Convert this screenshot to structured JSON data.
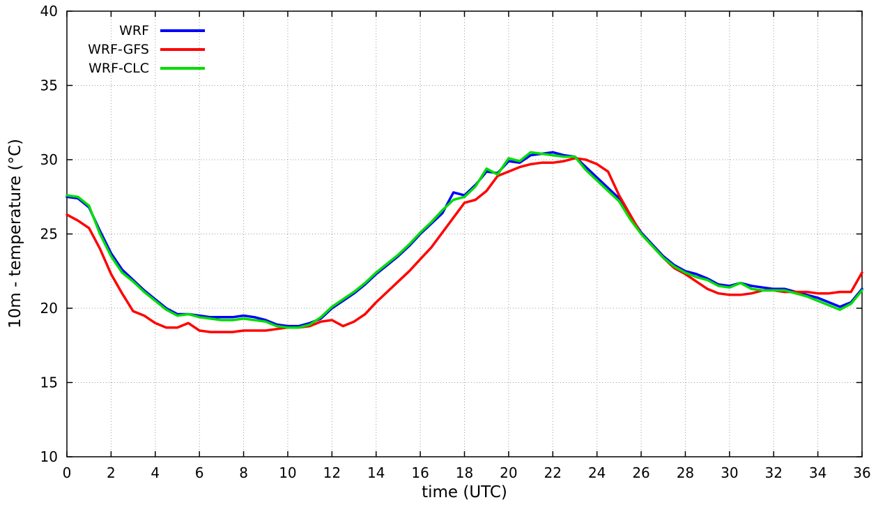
{
  "chart_data": {
    "type": "line",
    "title": "",
    "xlabel": "time (UTC)",
    "ylabel": "10m - temperature (°C)",
    "xlim": [
      0,
      36
    ],
    "ylim": [
      10,
      40
    ],
    "xticks": [
      0,
      2,
      4,
      6,
      8,
      10,
      12,
      14,
      16,
      18,
      20,
      22,
      24,
      26,
      28,
      30,
      32,
      34,
      36
    ],
    "yticks": [
      10,
      15,
      20,
      25,
      30,
      35,
      40
    ],
    "grid": true,
    "grid_style": "dotted",
    "legend_position": "top-left",
    "series": [
      {
        "name": "WRF",
        "color": "#0000ff",
        "points": [
          [
            0,
            27.5
          ],
          [
            0.5,
            27.4
          ],
          [
            1,
            26.8
          ],
          [
            1.5,
            25.2
          ],
          [
            2,
            23.7
          ],
          [
            2.5,
            22.6
          ],
          [
            3,
            21.9
          ],
          [
            3.5,
            21.2
          ],
          [
            4,
            20.6
          ],
          [
            4.5,
            20.0
          ],
          [
            5,
            19.6
          ],
          [
            5.5,
            19.6
          ],
          [
            6,
            19.5
          ],
          [
            6.5,
            19.4
          ],
          [
            7,
            19.4
          ],
          [
            7.5,
            19.4
          ],
          [
            8,
            19.5
          ],
          [
            8.5,
            19.4
          ],
          [
            9,
            19.2
          ],
          [
            9.5,
            18.9
          ],
          [
            10,
            18.8
          ],
          [
            10.5,
            18.8
          ],
          [
            11,
            19.0
          ],
          [
            11.5,
            19.3
          ],
          [
            12,
            20.0
          ],
          [
            12.5,
            20.5
          ],
          [
            13,
            21.0
          ],
          [
            13.5,
            21.6
          ],
          [
            14,
            22.3
          ],
          [
            14.5,
            22.9
          ],
          [
            15,
            23.5
          ],
          [
            15.5,
            24.2
          ],
          [
            16,
            25.0
          ],
          [
            16.5,
            25.7
          ],
          [
            17,
            26.4
          ],
          [
            17.5,
            27.8
          ],
          [
            18,
            27.6
          ],
          [
            18.5,
            28.3
          ],
          [
            19,
            29.2
          ],
          [
            19.5,
            29.1
          ],
          [
            20,
            29.9
          ],
          [
            20.5,
            29.8
          ],
          [
            21,
            30.3
          ],
          [
            21.5,
            30.4
          ],
          [
            22,
            30.5
          ],
          [
            22.5,
            30.3
          ],
          [
            23,
            30.2
          ],
          [
            23.5,
            29.5
          ],
          [
            24,
            28.8
          ],
          [
            24.5,
            28.1
          ],
          [
            25,
            27.4
          ],
          [
            25.5,
            26.2
          ],
          [
            26,
            25.1
          ],
          [
            26.5,
            24.3
          ],
          [
            27,
            23.5
          ],
          [
            27.5,
            22.9
          ],
          [
            28,
            22.5
          ],
          [
            28.5,
            22.3
          ],
          [
            29,
            22.0
          ],
          [
            29.5,
            21.6
          ],
          [
            30,
            21.5
          ],
          [
            30.5,
            21.7
          ],
          [
            31,
            21.5
          ],
          [
            31.5,
            21.4
          ],
          [
            32,
            21.3
          ],
          [
            32.5,
            21.3
          ],
          [
            33,
            21.1
          ],
          [
            33.5,
            20.9
          ],
          [
            34,
            20.7
          ],
          [
            34.5,
            20.4
          ],
          [
            35,
            20.1
          ],
          [
            35.5,
            20.4
          ],
          [
            36,
            21.3
          ]
        ]
      },
      {
        "name": "WRF-GFS",
        "color": "#ff0000",
        "points": [
          [
            0,
            26.3
          ],
          [
            0.5,
            25.9
          ],
          [
            1,
            25.4
          ],
          [
            1.5,
            24.0
          ],
          [
            2,
            22.3
          ],
          [
            2.5,
            21.0
          ],
          [
            3,
            19.8
          ],
          [
            3.5,
            19.5
          ],
          [
            4,
            19.0
          ],
          [
            4.5,
            18.7
          ],
          [
            5,
            18.7
          ],
          [
            5.5,
            19.0
          ],
          [
            6,
            18.5
          ],
          [
            6.5,
            18.4
          ],
          [
            7,
            18.4
          ],
          [
            7.5,
            18.4
          ],
          [
            8,
            18.5
          ],
          [
            8.5,
            18.5
          ],
          [
            9,
            18.5
          ],
          [
            9.5,
            18.6
          ],
          [
            10,
            18.7
          ],
          [
            10.5,
            18.7
          ],
          [
            11,
            18.8
          ],
          [
            11.5,
            19.1
          ],
          [
            12,
            19.2
          ],
          [
            12.5,
            18.8
          ],
          [
            13,
            19.1
          ],
          [
            13.5,
            19.6
          ],
          [
            14,
            20.4
          ],
          [
            14.5,
            21.1
          ],
          [
            15,
            21.8
          ],
          [
            15.5,
            22.5
          ],
          [
            16,
            23.3
          ],
          [
            16.5,
            24.1
          ],
          [
            17,
            25.1
          ],
          [
            17.5,
            26.1
          ],
          [
            18,
            27.1
          ],
          [
            18.5,
            27.3
          ],
          [
            19,
            27.9
          ],
          [
            19.5,
            28.9
          ],
          [
            20,
            29.2
          ],
          [
            20.5,
            29.5
          ],
          [
            21,
            29.7
          ],
          [
            21.5,
            29.8
          ],
          [
            22,
            29.8
          ],
          [
            22.5,
            29.9
          ],
          [
            23,
            30.1
          ],
          [
            23.5,
            30.0
          ],
          [
            24,
            29.7
          ],
          [
            24.5,
            29.2
          ],
          [
            25,
            27.6
          ],
          [
            25.5,
            26.3
          ],
          [
            26,
            25.0
          ],
          [
            26.5,
            24.2
          ],
          [
            27,
            23.4
          ],
          [
            27.5,
            22.7
          ],
          [
            28,
            22.3
          ],
          [
            28.5,
            21.8
          ],
          [
            29,
            21.3
          ],
          [
            29.5,
            21.0
          ],
          [
            30,
            20.9
          ],
          [
            30.5,
            20.9
          ],
          [
            31,
            21.0
          ],
          [
            31.5,
            21.2
          ],
          [
            32,
            21.2
          ],
          [
            32.5,
            21.1
          ],
          [
            33,
            21.1
          ],
          [
            33.5,
            21.1
          ],
          [
            34,
            21.0
          ],
          [
            34.5,
            21.0
          ],
          [
            35,
            21.1
          ],
          [
            35.5,
            21.1
          ],
          [
            36,
            22.4
          ]
        ]
      },
      {
        "name": "WRF-CLC",
        "color": "#00dd00",
        "points": [
          [
            0,
            27.6
          ],
          [
            0.5,
            27.5
          ],
          [
            1,
            26.9
          ],
          [
            1.5,
            25.0
          ],
          [
            2,
            23.5
          ],
          [
            2.5,
            22.4
          ],
          [
            3,
            21.8
          ],
          [
            3.5,
            21.1
          ],
          [
            4,
            20.5
          ],
          [
            4.5,
            19.9
          ],
          [
            5,
            19.5
          ],
          [
            5.5,
            19.6
          ],
          [
            6,
            19.4
          ],
          [
            6.5,
            19.3
          ],
          [
            7,
            19.2
          ],
          [
            7.5,
            19.2
          ],
          [
            8,
            19.3
          ],
          [
            8.5,
            19.2
          ],
          [
            9,
            19.1
          ],
          [
            9.5,
            18.8
          ],
          [
            10,
            18.7
          ],
          [
            10.5,
            18.7
          ],
          [
            11,
            18.9
          ],
          [
            11.5,
            19.4
          ],
          [
            12,
            20.1
          ],
          [
            12.5,
            20.6
          ],
          [
            13,
            21.1
          ],
          [
            13.5,
            21.7
          ],
          [
            14,
            22.4
          ],
          [
            14.5,
            23.0
          ],
          [
            15,
            23.6
          ],
          [
            15.5,
            24.3
          ],
          [
            16,
            25.1
          ],
          [
            16.5,
            25.8
          ],
          [
            17,
            26.6
          ],
          [
            17.5,
            27.3
          ],
          [
            18,
            27.5
          ],
          [
            18.5,
            28.2
          ],
          [
            19,
            29.4
          ],
          [
            19.5,
            29.0
          ],
          [
            20,
            30.1
          ],
          [
            20.5,
            29.9
          ],
          [
            21,
            30.5
          ],
          [
            21.5,
            30.4
          ],
          [
            22,
            30.3
          ],
          [
            22.5,
            30.2
          ],
          [
            23,
            30.2
          ],
          [
            23.5,
            29.3
          ],
          [
            24,
            28.6
          ],
          [
            24.5,
            27.9
          ],
          [
            25,
            27.2
          ],
          [
            25.5,
            26.0
          ],
          [
            26,
            25.0
          ],
          [
            26.5,
            24.2
          ],
          [
            27,
            23.4
          ],
          [
            27.5,
            22.8
          ],
          [
            28,
            22.4
          ],
          [
            28.5,
            22.1
          ],
          [
            29,
            21.9
          ],
          [
            29.5,
            21.5
          ],
          [
            30,
            21.4
          ],
          [
            30.5,
            21.7
          ],
          [
            31,
            21.3
          ],
          [
            31.5,
            21.2
          ],
          [
            32,
            21.2
          ],
          [
            32.5,
            21.2
          ],
          [
            33,
            21.0
          ],
          [
            33.5,
            20.8
          ],
          [
            34,
            20.5
          ],
          [
            34.5,
            20.2
          ],
          [
            35,
            19.9
          ],
          [
            35.5,
            20.3
          ],
          [
            36,
            21.2
          ]
        ]
      }
    ]
  }
}
